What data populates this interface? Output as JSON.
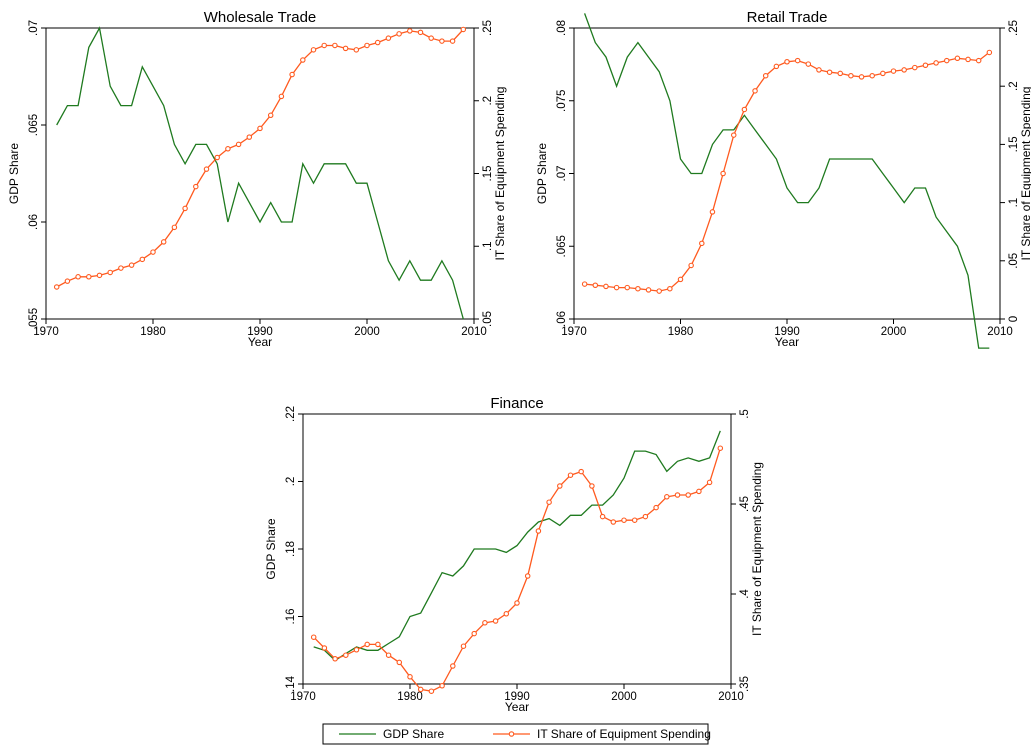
{
  "chart_data": [
    {
      "type": "line",
      "title": "Wholesale Trade",
      "xlabel": "Year",
      "ylabel_left": "GDP Share",
      "ylabel_right": "IT Share of Equipment Spending",
      "xlim": [
        1970,
        2010
      ],
      "x_ticks": [
        1970,
        1980,
        1990,
        2000,
        2010
      ],
      "ylim_left": [
        0.055,
        0.07
      ],
      "y_ticks_left": [
        ".055",
        ".06",
        ".065",
        ".07"
      ],
      "ylim_right": [
        0.05,
        0.25
      ],
      "y_ticks_right": [
        ".05",
        ".1",
        ".15",
        ".2",
        ".25"
      ],
      "grid": false,
      "series": [
        {
          "name": "GDP Share",
          "axis": "left",
          "color": "#1f7a1f",
          "marker": "none",
          "x": [
            1971,
            1972,
            1973,
            1974,
            1975,
            1976,
            1977,
            1978,
            1979,
            1980,
            1981,
            1982,
            1983,
            1984,
            1985,
            1986,
            1987,
            1988,
            1989,
            1990,
            1991,
            1992,
            1993,
            1994,
            1995,
            1996,
            1997,
            1998,
            1999,
            2000,
            2001,
            2002,
            2003,
            2004,
            2005,
            2006,
            2007,
            2008,
            2009
          ],
          "values": [
            0.065,
            0.066,
            0.066,
            0.069,
            0.07,
            0.067,
            0.066,
            0.066,
            0.068,
            0.067,
            0.066,
            0.064,
            0.063,
            0.064,
            0.064,
            0.063,
            0.06,
            0.062,
            0.061,
            0.06,
            0.061,
            0.06,
            0.06,
            0.063,
            0.062,
            0.063,
            0.063,
            0.063,
            0.062,
            0.062,
            0.06,
            0.058,
            0.057,
            0.058,
            0.057,
            0.057,
            0.058,
            0.057,
            0.055
          ]
        },
        {
          "name": "IT Share of Equipment Spending",
          "axis": "right",
          "color": "#ff5a1f",
          "marker": "circle",
          "x": [
            1971,
            1972,
            1973,
            1974,
            1975,
            1976,
            1977,
            1978,
            1979,
            1980,
            1981,
            1982,
            1983,
            1984,
            1985,
            1986,
            1987,
            1988,
            1989,
            1990,
            1991,
            1992,
            1993,
            1994,
            1995,
            1996,
            1997,
            1998,
            1999,
            2000,
            2001,
            2002,
            2003,
            2004,
            2005,
            2006,
            2007,
            2008,
            2009
          ],
          "values": [
            0.072,
            0.076,
            0.079,
            0.079,
            0.08,
            0.082,
            0.085,
            0.087,
            0.091,
            0.096,
            0.103,
            0.113,
            0.126,
            0.141,
            0.153,
            0.161,
            0.167,
            0.17,
            0.175,
            0.181,
            0.19,
            0.203,
            0.218,
            0.228,
            0.235,
            0.238,
            0.238,
            0.236,
            0.235,
            0.238,
            0.24,
            0.243,
            0.246,
            0.248,
            0.247,
            0.243,
            0.241,
            0.241,
            0.249
          ]
        }
      ]
    },
    {
      "type": "line",
      "title": "Retail Trade",
      "xlabel": "Year",
      "ylabel_left": "GDP Share",
      "ylabel_right": "IT Share of Equipment Spending",
      "xlim": [
        1970,
        2010
      ],
      "x_ticks": [
        1970,
        1980,
        1990,
        2000,
        2010
      ],
      "ylim_left": [
        0.06,
        0.08
      ],
      "y_ticks_left": [
        ".06",
        ".065",
        ".07",
        ".075",
        ".08"
      ],
      "ylim_right": [
        0,
        0.25
      ],
      "y_ticks_right": [
        "0",
        ".05",
        ".1",
        ".15",
        ".2",
        ".25"
      ],
      "grid": false,
      "series": [
        {
          "name": "GDP Share",
          "axis": "left",
          "color": "#1f7a1f",
          "marker": "none",
          "x": [
            1971,
            1972,
            1973,
            1974,
            1975,
            1976,
            1977,
            1978,
            1979,
            1980,
            1981,
            1982,
            1983,
            1984,
            1985,
            1986,
            1987,
            1988,
            1989,
            1990,
            1991,
            1992,
            1993,
            1994,
            1995,
            1996,
            1997,
            1998,
            1999,
            2000,
            2001,
            2002,
            2003,
            2004,
            2005,
            2006,
            2007,
            2008,
            2009
          ],
          "values": [
            0.081,
            0.079,
            0.078,
            0.076,
            0.078,
            0.079,
            0.078,
            0.077,
            0.075,
            0.071,
            0.07,
            0.07,
            0.072,
            0.073,
            0.073,
            0.074,
            0.073,
            0.072,
            0.071,
            0.069,
            0.068,
            0.068,
            0.069,
            0.071,
            0.071,
            0.071,
            0.071,
            0.071,
            0.07,
            0.069,
            0.068,
            0.069,
            0.069,
            0.067,
            0.066,
            0.065,
            0.063,
            0.058,
            0.058
          ]
        },
        {
          "name": "IT Share of Equipment Spending",
          "axis": "right",
          "color": "#ff5a1f",
          "marker": "circle",
          "x": [
            1971,
            1972,
            1973,
            1974,
            1975,
            1976,
            1977,
            1978,
            1979,
            1980,
            1981,
            1982,
            1983,
            1984,
            1985,
            1986,
            1987,
            1988,
            1989,
            1990,
            1991,
            1992,
            1993,
            1994,
            1995,
            1996,
            1997,
            1998,
            1999,
            2000,
            2001,
            2002,
            2003,
            2004,
            2005,
            2006,
            2007,
            2008,
            2009
          ],
          "values": [
            0.03,
            0.029,
            0.028,
            0.027,
            0.027,
            0.026,
            0.025,
            0.024,
            0.026,
            0.034,
            0.046,
            0.065,
            0.092,
            0.125,
            0.158,
            0.18,
            0.196,
            0.209,
            0.217,
            0.221,
            0.222,
            0.219,
            0.214,
            0.212,
            0.211,
            0.209,
            0.208,
            0.209,
            0.211,
            0.213,
            0.214,
            0.216,
            0.218,
            0.22,
            0.222,
            0.224,
            0.223,
            0.222,
            0.229
          ]
        }
      ]
    },
    {
      "type": "line",
      "title": "Finance",
      "xlabel": "Year",
      "ylabel_left": "GDP Share",
      "ylabel_right": "IT Share of Equipment Spending",
      "xlim": [
        1970,
        2010
      ],
      "x_ticks": [
        1970,
        1980,
        1990,
        2000,
        2010
      ],
      "ylim_left": [
        0.14,
        0.22
      ],
      "y_ticks_left": [
        ".14",
        ".16",
        ".18",
        ".2",
        ".22"
      ],
      "ylim_right": [
        0.35,
        0.5
      ],
      "y_ticks_right": [
        ".35",
        ".4",
        ".45",
        ".5"
      ],
      "grid": false,
      "series": [
        {
          "name": "GDP Share",
          "axis": "left",
          "color": "#1f7a1f",
          "marker": "none",
          "x": [
            1971,
            1972,
            1973,
            1974,
            1975,
            1976,
            1977,
            1978,
            1979,
            1980,
            1981,
            1982,
            1983,
            1984,
            1985,
            1986,
            1987,
            1988,
            1989,
            1990,
            1991,
            1992,
            1993,
            1994,
            1995,
            1996,
            1997,
            1998,
            1999,
            2000,
            2001,
            2002,
            2003,
            2004,
            2005,
            2006,
            2007,
            2008,
            2009
          ],
          "values": [
            0.151,
            0.15,
            0.147,
            0.149,
            0.151,
            0.15,
            0.15,
            0.152,
            0.154,
            0.16,
            0.161,
            0.167,
            0.173,
            0.172,
            0.175,
            0.18,
            0.18,
            0.18,
            0.179,
            0.181,
            0.185,
            0.188,
            0.189,
            0.187,
            0.19,
            0.19,
            0.193,
            0.193,
            0.196,
            0.201,
            0.209,
            0.209,
            0.208,
            0.203,
            0.206,
            0.207,
            0.206,
            0.207,
            0.215
          ]
        },
        {
          "name": "IT Share of Equipment Spending",
          "axis": "right",
          "color": "#ff5a1f",
          "marker": "circle",
          "x": [
            1971,
            1972,
            1973,
            1974,
            1975,
            1976,
            1977,
            1978,
            1979,
            1980,
            1981,
            1982,
            1983,
            1984,
            1985,
            1986,
            1987,
            1988,
            1989,
            1990,
            1991,
            1992,
            1993,
            1994,
            1995,
            1996,
            1997,
            1998,
            1999,
            2000,
            2001,
            2002,
            2003,
            2004,
            2005,
            2006,
            2007,
            2008,
            2009
          ],
          "values": [
            0.376,
            0.37,
            0.364,
            0.366,
            0.369,
            0.372,
            0.372,
            0.366,
            0.362,
            0.354,
            0.347,
            0.346,
            0.349,
            0.36,
            0.371,
            0.378,
            0.384,
            0.385,
            0.389,
            0.395,
            0.41,
            0.435,
            0.451,
            0.46,
            0.466,
            0.468,
            0.46,
            0.443,
            0.44,
            0.441,
            0.441,
            0.443,
            0.448,
            0.454,
            0.455,
            0.455,
            0.457,
            0.462,
            0.481
          ]
        }
      ]
    }
  ],
  "legend": {
    "placement": "bottom-center",
    "items": [
      {
        "label": "GDP Share",
        "color": "#1f7a1f",
        "marker": "none"
      },
      {
        "label": "IT Share of Equipment Spending",
        "color": "#ff5a1f",
        "marker": "circle"
      }
    ]
  }
}
